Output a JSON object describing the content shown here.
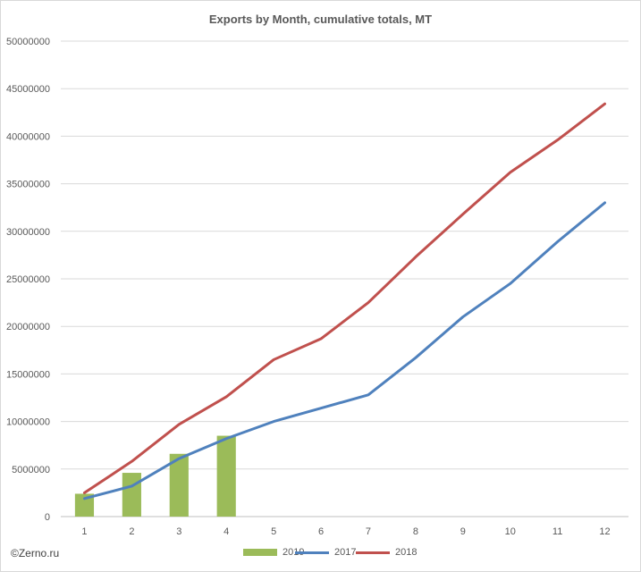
{
  "chart_data": {
    "type": "bar+line",
    "title": "Exports by Month, cumulative totals, MT",
    "xlabel": "",
    "ylabel": "",
    "ylim": [
      0,
      50000000
    ],
    "y_ticks": [
      "0",
      "5000000",
      "10000000",
      "15000000",
      "20000000",
      "25000000",
      "30000000",
      "35000000",
      "40000000",
      "45000000",
      "50000000"
    ],
    "categories": [
      "1",
      "2",
      "3",
      "4",
      "5",
      "6",
      "7",
      "8",
      "9",
      "10",
      "11",
      "12"
    ],
    "grid": true,
    "legend_position": "bottom",
    "series": [
      {
        "name": "2019",
        "kind": "bar",
        "color": "#9bbb59",
        "values": [
          2400000,
          4600000,
          6600000,
          8500000,
          null,
          null,
          null,
          null,
          null,
          null,
          null,
          null
        ]
      },
      {
        "name": "2017",
        "kind": "line",
        "color": "#4f81bd",
        "values": [
          1900000,
          3200000,
          6100000,
          8200000,
          10000000,
          11400000,
          12800000,
          16700000,
          21000000,
          24500000,
          28900000,
          33000000
        ]
      },
      {
        "name": "2018",
        "kind": "line",
        "color": "#c0504d",
        "values": [
          2500000,
          5800000,
          9700000,
          12600000,
          16500000,
          18700000,
          22500000,
          27300000,
          31800000,
          36200000,
          39600000,
          43400000
        ]
      }
    ]
  },
  "credit": "©Zerno.ru"
}
